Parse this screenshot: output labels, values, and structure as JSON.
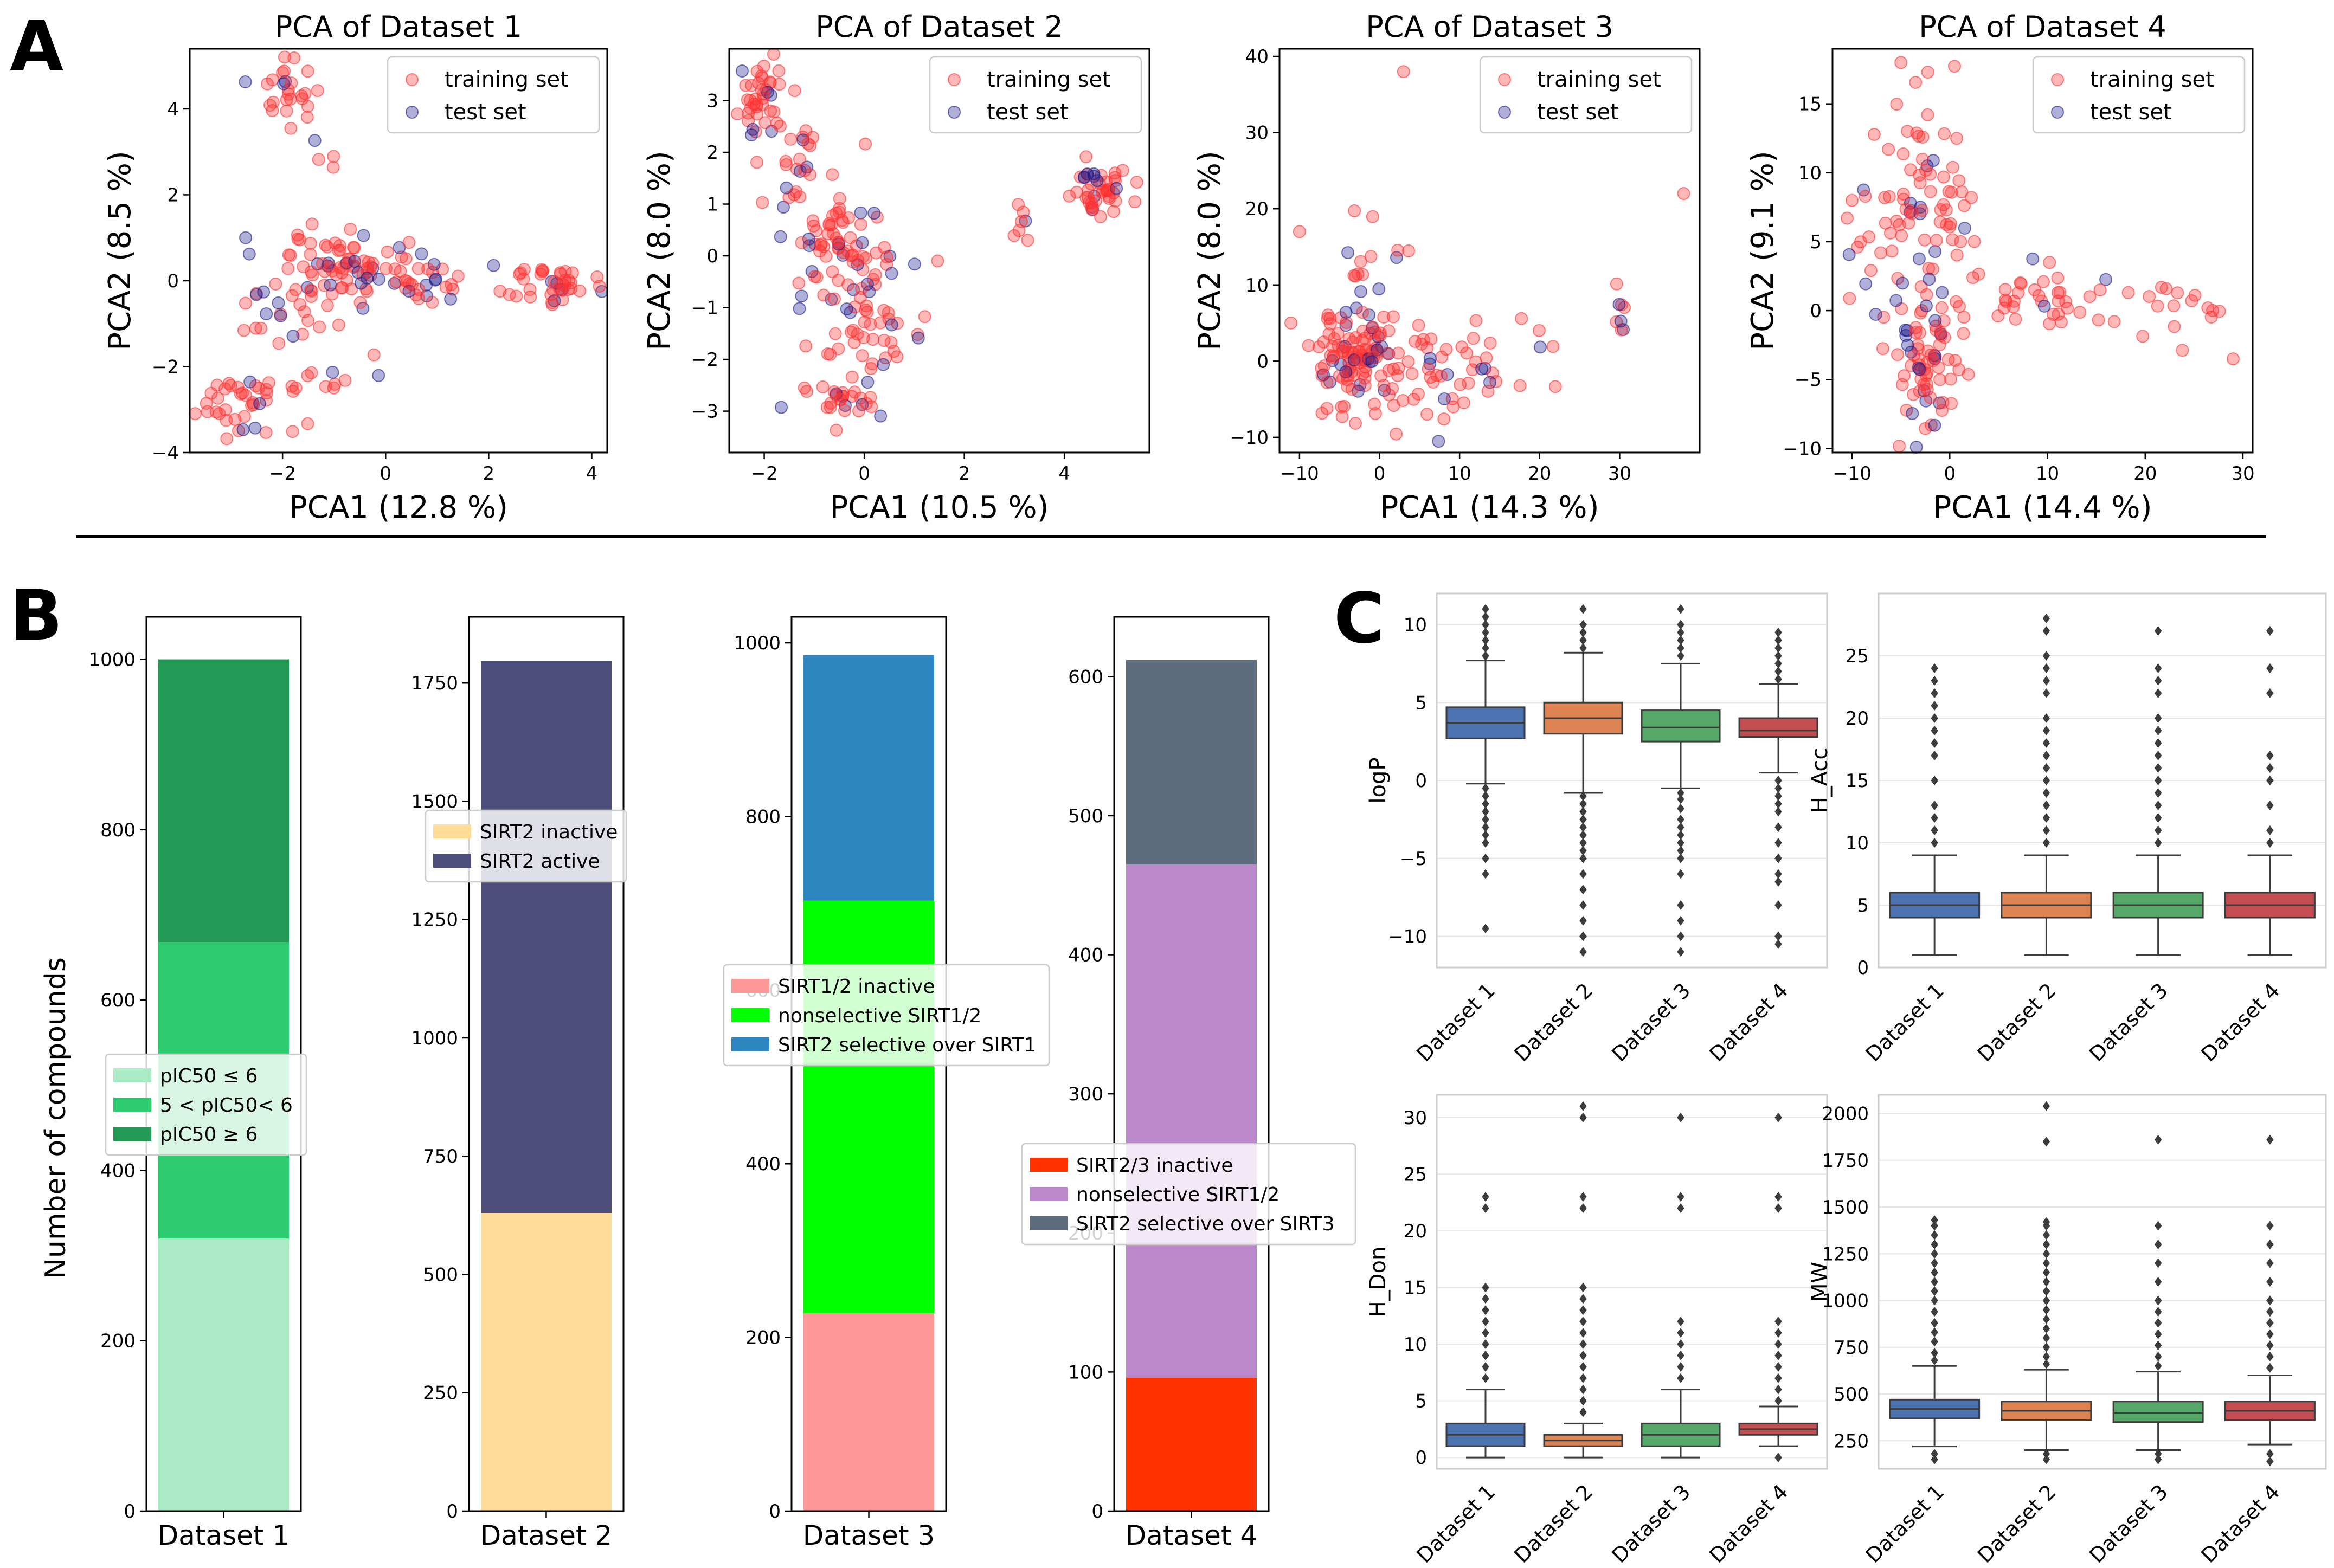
{
  "panel_labels": {
    "a": "A",
    "b": "B",
    "c": "C"
  },
  "colors": {
    "train": "#ff3030",
    "test": "#1a1a8c",
    "box_blue": "#4c72b0",
    "box_orange": "#dd8452",
    "box_green": "#55a868",
    "box_red": "#c44e52",
    "d1_low": "#abebc6",
    "d1_mid": "#2ecc71",
    "d1_high": "#229954",
    "d2_inactive": "#ffdd99",
    "d2_active": "#4d4d7a",
    "d3_inactive": "#ff9999",
    "d3_nonsel": "#00ff00",
    "d3_sel": "#2e86c1",
    "d4_inactive": "#ff3300",
    "d4_nonsel": "#bb88cc",
    "d4_sel": "#5d6d7e"
  },
  "chart_data": [
    {
      "id": "pca1",
      "type": "scatter",
      "title": "PCA of Dataset 1",
      "xlabel": "PCA1 (12.8 %)",
      "ylabel": "PCA2 (8.5 %)",
      "xlim": [
        -3.8,
        4.3
      ],
      "ylim": [
        -4.0,
        5.4
      ],
      "xticks": [
        -2,
        0,
        2,
        4
      ],
      "yticks": [
        -4,
        -2,
        0,
        2,
        4
      ],
      "legend": [
        "training set",
        "test set"
      ],
      "legend_position": "top-right",
      "clusters": [
        {
          "cx": -1.9,
          "cy": 4.4,
          "sx": 0.25,
          "sy": 0.4,
          "n": 26
        },
        {
          "cx": -1.2,
          "cy": 2.9,
          "sx": 0.2,
          "sy": 0.2,
          "n": 4
        },
        {
          "cx": -1.0,
          "cy": 0.2,
          "sx": 0.6,
          "sy": 0.55,
          "n": 70
        },
        {
          "cx": 0.4,
          "cy": 0.0,
          "sx": 0.7,
          "sy": 0.3,
          "n": 40
        },
        {
          "cx": 3.2,
          "cy": -0.1,
          "sx": 0.45,
          "sy": 0.2,
          "n": 40
        },
        {
          "cx": -2.1,
          "cy": -0.8,
          "sx": 0.4,
          "sy": 0.45,
          "n": 20
        },
        {
          "cx": -2.7,
          "cy": -2.9,
          "sx": 0.5,
          "sy": 0.35,
          "n": 36
        },
        {
          "cx": -1.5,
          "cy": -2.4,
          "sx": 0.5,
          "sy": 0.2,
          "n": 12
        }
      ]
    },
    {
      "id": "pca2",
      "type": "scatter",
      "title": "PCA of Dataset 2",
      "xlabel": "PCA1 (10.5 %)",
      "ylabel": "PCA2 (8.0 %)",
      "xlim": [
        -2.7,
        5.7
      ],
      "ylim": [
        -3.8,
        4.0
      ],
      "xticks": [
        -2,
        0,
        2,
        4
      ],
      "yticks": [
        -3,
        -2,
        -1,
        0,
        1,
        2,
        3
      ],
      "legend": [
        "training set",
        "test set"
      ],
      "legend_position": "top-right",
      "clusters": [
        {
          "cx": -2.0,
          "cy": 3.2,
          "sx": 0.25,
          "sy": 0.4,
          "n": 40
        },
        {
          "cx": -1.3,
          "cy": 1.7,
          "sx": 0.35,
          "sy": 0.5,
          "n": 25
        },
        {
          "cx": -0.6,
          "cy": 0.2,
          "sx": 0.45,
          "sy": 0.6,
          "n": 55
        },
        {
          "cx": 0.1,
          "cy": -1.1,
          "sx": 0.45,
          "sy": 0.6,
          "n": 60
        },
        {
          "cx": -0.6,
          "cy": -2.9,
          "sx": 0.5,
          "sy": 0.35,
          "n": 30
        },
        {
          "cx": 4.7,
          "cy": 1.3,
          "sx": 0.3,
          "sy": 0.3,
          "n": 45
        },
        {
          "cx": 3.2,
          "cy": 0.6,
          "sx": 0.3,
          "sy": 0.2,
          "n": 7
        }
      ]
    },
    {
      "id": "pca3",
      "type": "scatter",
      "title": "PCA of Dataset 3",
      "xlabel": "PCA1 (14.3 %)",
      "ylabel": "PCA2 (8.0 %)",
      "xlim": [
        -12.5,
        40
      ],
      "ylim": [
        -12,
        41
      ],
      "xticks": [
        -10,
        0,
        10,
        20,
        30
      ],
      "yticks": [
        -10,
        0,
        10,
        20,
        30,
        40
      ],
      "legend": [
        "training set",
        "test set"
      ],
      "legend_position": "top-right",
      "clusters": [
        {
          "cx": -3.0,
          "cy": 1.0,
          "sx": 2.5,
          "sy": 4.0,
          "n": 110
        },
        {
          "cx": 6.0,
          "cy": -1.0,
          "sx": 5.0,
          "sy": 3.5,
          "n": 50
        },
        {
          "cx": 0.0,
          "cy": 12.0,
          "sx": 2.5,
          "sy": 4.0,
          "n": 12
        },
        {
          "cx": 30.5,
          "cy": 8.0,
          "sx": 0.6,
          "sy": 2.0,
          "n": 8
        },
        {
          "cx": 16.0,
          "cy": 1.0,
          "sx": 4.0,
          "sy": 3.5,
          "n": 12
        }
      ],
      "outliers": [
        [
          3,
          38
        ],
        [
          38,
          22
        ],
        [
          -10,
          17
        ]
      ]
    },
    {
      "id": "pca4",
      "type": "scatter",
      "title": "PCA of Dataset 4",
      "xlabel": "PCA1 (14.4 %)",
      "ylabel": "PCA2 (9.1 %)",
      "xlim": [
        -12,
        31
      ],
      "ylim": [
        -10.3,
        19
      ],
      "xticks": [
        -10,
        0,
        10,
        20,
        30
      ],
      "yticks": [
        -10,
        -5,
        0,
        5,
        10,
        15
      ],
      "legend": [
        "training set",
        "test set"
      ],
      "legend_position": "top-right",
      "clusters": [
        {
          "cx": -3.5,
          "cy": 8.0,
          "sx": 2.5,
          "sy": 4.0,
          "n": 45
        },
        {
          "cx": -2.5,
          "cy": -3.5,
          "sx": 1.8,
          "sy": 3.0,
          "n": 80
        },
        {
          "cx": 0.5,
          "cy": 7.0,
          "sx": 2.0,
          "sy": 2.5,
          "n": 25
        },
        {
          "cx": 10.0,
          "cy": 0.8,
          "sx": 5.0,
          "sy": 1.2,
          "n": 40
        },
        {
          "cx": 23.0,
          "cy": 0.0,
          "sx": 3.5,
          "sy": 1.2,
          "n": 14
        },
        {
          "cx": -7.0,
          "cy": 5.0,
          "sx": 2.0,
          "sy": 3.0,
          "n": 12
        }
      ],
      "outliers": [
        [
          -5,
          18
        ],
        [
          29,
          -3.5
        ],
        [
          -10,
          8
        ]
      ]
    },
    {
      "id": "bar1",
      "type": "bar",
      "stacked": true,
      "category": "Dataset 1",
      "ylabel": "Number of compounds",
      "ylim": [
        0,
        1050
      ],
      "yticks": [
        0,
        200,
        400,
        600,
        800,
        1000
      ],
      "segments": [
        {
          "label": "pIC50 ≤ 6",
          "value": 320
        },
        {
          "label": "5 < pIC50< 6",
          "value": 348
        },
        {
          "label": "pIC50 ≥ 6",
          "value": 332
        }
      ],
      "legend_position": "center-left"
    },
    {
      "id": "bar2",
      "type": "bar",
      "stacked": true,
      "category": "Dataset 2",
      "ylabel": "",
      "ylim": [
        0,
        1890
      ],
      "yticks": [
        0,
        250,
        500,
        750,
        1000,
        1250,
        1500,
        1750
      ],
      "segments": [
        {
          "label": "SIRT2 inactive",
          "value": 630
        },
        {
          "label": "SIRT2 active",
          "value": 1167
        }
      ],
      "legend_position": "upper-left"
    },
    {
      "id": "bar3",
      "type": "bar",
      "stacked": true,
      "category": "Dataset 3",
      "ylabel": "",
      "ylim": [
        0,
        1030
      ],
      "yticks": [
        0,
        200,
        400,
        600,
        800,
        1000
      ],
      "segments": [
        {
          "label": "SIRT1/2 inactive",
          "value": 228
        },
        {
          "label": "nonselective SIRT1/2",
          "value": 475
        },
        {
          "label": "SIRT2 selective over SIRT1",
          "value": 283
        }
      ],
      "legend_position": "center-left"
    },
    {
      "id": "bar4",
      "type": "bar",
      "stacked": true,
      "category": "Dataset 4",
      "ylabel": "",
      "ylim": [
        0,
        643
      ],
      "yticks": [
        0,
        100,
        200,
        300,
        400,
        500,
        600
      ],
      "segments": [
        {
          "label": "SIRT2/3 inactive",
          "value": 96
        },
        {
          "label": "nonselective SIRT1/2",
          "value": 369
        },
        {
          "label": "SIRT2 selective over SIRT3",
          "value": 147
        }
      ],
      "legend_position": "center-left"
    },
    {
      "id": "box_logp",
      "type": "box",
      "ylabel": "logP",
      "ylim": [
        -12,
        12
      ],
      "yticks": [
        -10,
        -5,
        0,
        5,
        10
      ],
      "categories": [
        "Dataset 1",
        "Dataset 2",
        "Dataset 3",
        "Dataset 4"
      ],
      "boxes": [
        {
          "whislo": -0.2,
          "q1": 2.7,
          "med": 3.7,
          "q3": 4.7,
          "whishi": 7.7,
          "fliers": [
            -0.5,
            -1,
            -1.5,
            -2,
            -2.5,
            -3,
            -3.5,
            -4,
            -5,
            -6,
            -9.5,
            8,
            8.5,
            9,
            9.5,
            10,
            10.5,
            11
          ]
        },
        {
          "whislo": -0.8,
          "q1": 3.0,
          "med": 4.0,
          "q3": 5.0,
          "whishi": 8.2,
          "fliers": [
            -1,
            -1.5,
            -2,
            -2.5,
            -3,
            -3.5,
            -4,
            -4.5,
            -5,
            -6,
            -7,
            -8,
            -9,
            -10,
            -11,
            8.5,
            9,
            9.5,
            10,
            11
          ]
        },
        {
          "whislo": -0.5,
          "q1": 2.5,
          "med": 3.4,
          "q3": 4.5,
          "whishi": 7.5,
          "fliers": [
            -0.8,
            -1.2,
            -1.8,
            -2.5,
            -3,
            -3.5,
            -4,
            -4.5,
            -5,
            -6,
            -8,
            -9,
            -10,
            -11,
            8,
            8.5,
            9,
            9.5,
            10,
            11
          ]
        },
        {
          "whislo": 0.5,
          "q1": 2.8,
          "med": 3.2,
          "q3": 4.0,
          "whishi": 6.2,
          "fliers": [
            0,
            -0.5,
            -1,
            -1.5,
            -2,
            -3,
            -4,
            -5,
            -6,
            -6.5,
            -8,
            -10,
            -10.5,
            6.5,
            7,
            7.5,
            8,
            8.5,
            9,
            9.5
          ]
        }
      ]
    },
    {
      "id": "box_hacc",
      "type": "box",
      "ylabel": "H_Acc",
      "ylim": [
        0,
        30
      ],
      "yticks": [
        0,
        5,
        10,
        15,
        20,
        25
      ],
      "categories": [
        "Dataset 1",
        "Dataset 2",
        "Dataset 3",
        "Dataset 4"
      ],
      "boxes": [
        {
          "whislo": 1,
          "q1": 4,
          "med": 5,
          "q3": 6,
          "whishi": 9,
          "fliers": [
            10,
            11,
            12,
            13,
            15,
            17,
            18,
            19,
            20,
            21,
            22,
            23,
            24
          ]
        },
        {
          "whislo": 1,
          "q1": 4,
          "med": 5,
          "q3": 6,
          "whishi": 9,
          "fliers": [
            10,
            11,
            12,
            13,
            14,
            15,
            16,
            17,
            18,
            19,
            20,
            22,
            23,
            24,
            25,
            27,
            28
          ]
        },
        {
          "whislo": 1,
          "q1": 4,
          "med": 5,
          "q3": 6,
          "whishi": 9,
          "fliers": [
            10,
            11,
            12,
            13,
            14,
            15,
            16,
            17,
            18,
            19,
            20,
            22,
            23,
            24,
            27
          ]
        },
        {
          "whislo": 1,
          "q1": 4,
          "med": 5,
          "q3": 6,
          "whishi": 9,
          "fliers": [
            10,
            11,
            13,
            15,
            16,
            17,
            22,
            24,
            27
          ]
        }
      ]
    },
    {
      "id": "box_hdon",
      "type": "box",
      "ylabel": "H_Don",
      "ylim": [
        -1,
        32
      ],
      "yticks": [
        0,
        5,
        10,
        15,
        20,
        25,
        30
      ],
      "categories": [
        "Dataset 1",
        "Dataset 2",
        "Dataset 3",
        "Dataset 4"
      ],
      "boxes": [
        {
          "whislo": 0,
          "q1": 1,
          "med": 2,
          "q3": 3,
          "whishi": 6,
          "fliers": [
            7,
            8,
            9,
            10,
            11,
            12,
            13,
            14,
            15,
            22,
            23
          ]
        },
        {
          "whislo": 0,
          "q1": 1,
          "med": 1.5,
          "q3": 2,
          "whishi": 3,
          "fliers": [
            4,
            5,
            6,
            7,
            8,
            9,
            10,
            11,
            12,
            13,
            14,
            15,
            22,
            23,
            30,
            31
          ]
        },
        {
          "whislo": 0,
          "q1": 1,
          "med": 2,
          "q3": 3,
          "whishi": 6,
          "fliers": [
            7,
            8,
            9,
            10,
            11,
            12,
            22,
            23,
            30
          ]
        },
        {
          "whislo": 1,
          "q1": 2,
          "med": 2.5,
          "q3": 3,
          "whishi": 4.5,
          "fliers": [
            0,
            5,
            6,
            7,
            8,
            9,
            10,
            11,
            12,
            22,
            23,
            30
          ]
        }
      ]
    },
    {
      "id": "box_mw",
      "type": "box",
      "ylabel": "MW",
      "ylim": [
        100,
        2100
      ],
      "yticks": [
        250,
        500,
        750,
        1000,
        1250,
        1500,
        1750,
        2000
      ],
      "categories": [
        "Dataset 1",
        "Dataset 2",
        "Dataset 3",
        "Dataset 4"
      ],
      "boxes": [
        {
          "whislo": 220,
          "q1": 370,
          "med": 420,
          "q3": 470,
          "whishi": 650,
          "fliers": [
            150,
            180,
            680,
            720,
            780,
            830,
            880,
            940,
            1000,
            1050,
            1100,
            1150,
            1200,
            1250,
            1300,
            1350,
            1400,
            1430
          ]
        },
        {
          "whislo": 200,
          "q1": 360,
          "med": 410,
          "q3": 460,
          "whishi": 630,
          "fliers": [
            150,
            180,
            660,
            700,
            750,
            800,
            850,
            900,
            950,
            1000,
            1050,
            1100,
            1150,
            1200,
            1250,
            1300,
            1350,
            1400,
            1420,
            1850,
            2040
          ]
        },
        {
          "whislo": 200,
          "q1": 350,
          "med": 400,
          "q3": 460,
          "whishi": 620,
          "fliers": [
            150,
            180,
            650,
            700,
            760,
            820,
            880,
            940,
            1000,
            1100,
            1200,
            1300,
            1400,
            1860
          ]
        },
        {
          "whislo": 230,
          "q1": 360,
          "med": 410,
          "q3": 460,
          "whishi": 600,
          "fliers": [
            140,
            180,
            640,
            700,
            760,
            820,
            880,
            940,
            1000,
            1100,
            1200,
            1300,
            1400,
            1860
          ]
        }
      ]
    }
  ]
}
